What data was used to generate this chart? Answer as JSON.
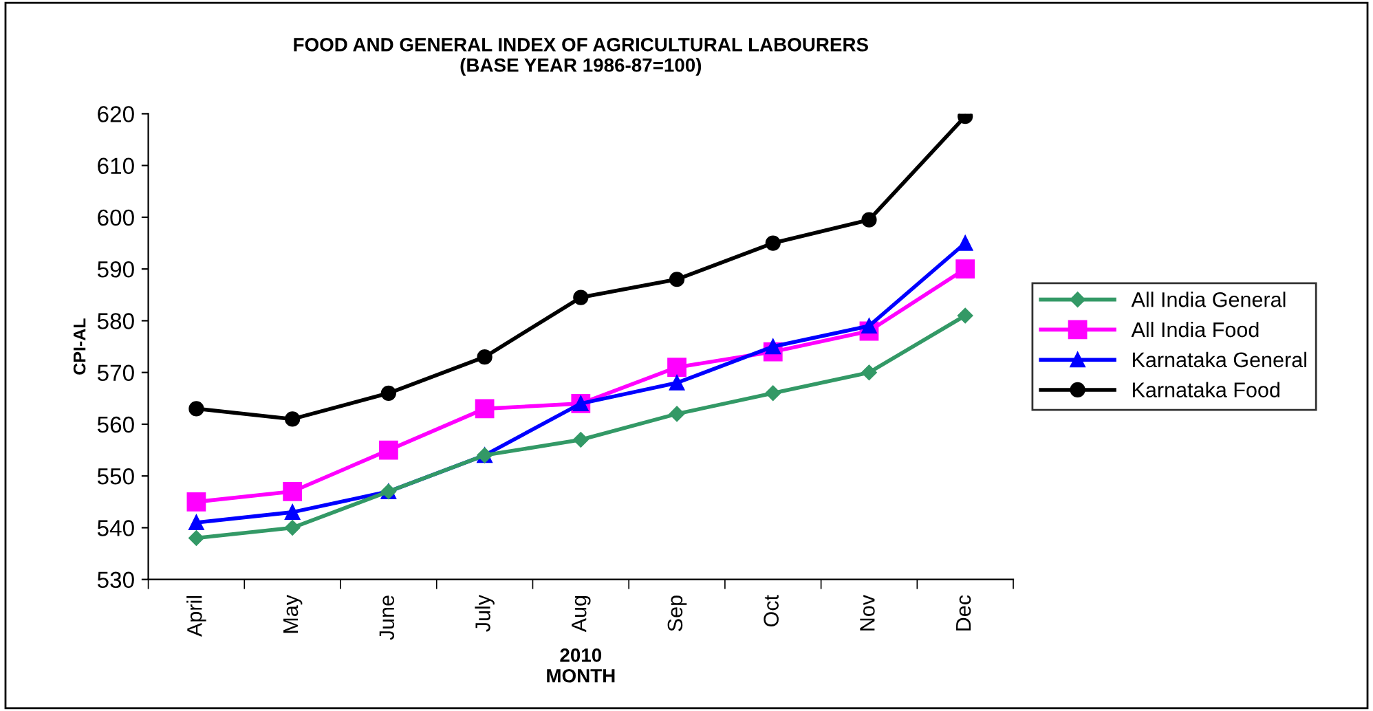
{
  "chart_data": {
    "type": "line",
    "title": "FOOD AND GENERAL INDEX OF AGRICULTURAL LABOURERS\n(BASE YEAR 1986-87=100)",
    "xlabel": "2010\nMONTH",
    "ylabel": "CPI-AL",
    "categories": [
      "April",
      "May",
      "June",
      "July",
      "Aug",
      "Sep",
      "Oct",
      "Nov",
      "Dec"
    ],
    "series": [
      {
        "name": "All India General",
        "color": "#339966",
        "marker": "diamond",
        "values": [
          538,
          540,
          547,
          554,
          557,
          562,
          566,
          570,
          581
        ]
      },
      {
        "name": "All India Food",
        "color": "#ff00ff",
        "marker": "square",
        "values": [
          545,
          547,
          555,
          563,
          564,
          571,
          574,
          578,
          590
        ]
      },
      {
        "name": "Karnataka General",
        "color": "#0000ff",
        "marker": "triangle",
        "values": [
          541,
          543,
          547,
          554,
          564,
          568,
          575,
          579,
          595
        ]
      },
      {
        "name": "Karnataka Food",
        "color": "#000000",
        "marker": "circle",
        "values": [
          563,
          561,
          566,
          573,
          584.5,
          588,
          595,
          599.5,
          619.5
        ]
      }
    ],
    "ylim": [
      530,
      620
    ],
    "yticks": [
      530,
      540,
      550,
      560,
      570,
      580,
      590,
      600,
      610,
      620
    ],
    "grid": false,
    "legend": "right",
    "line_style": "solid"
  }
}
